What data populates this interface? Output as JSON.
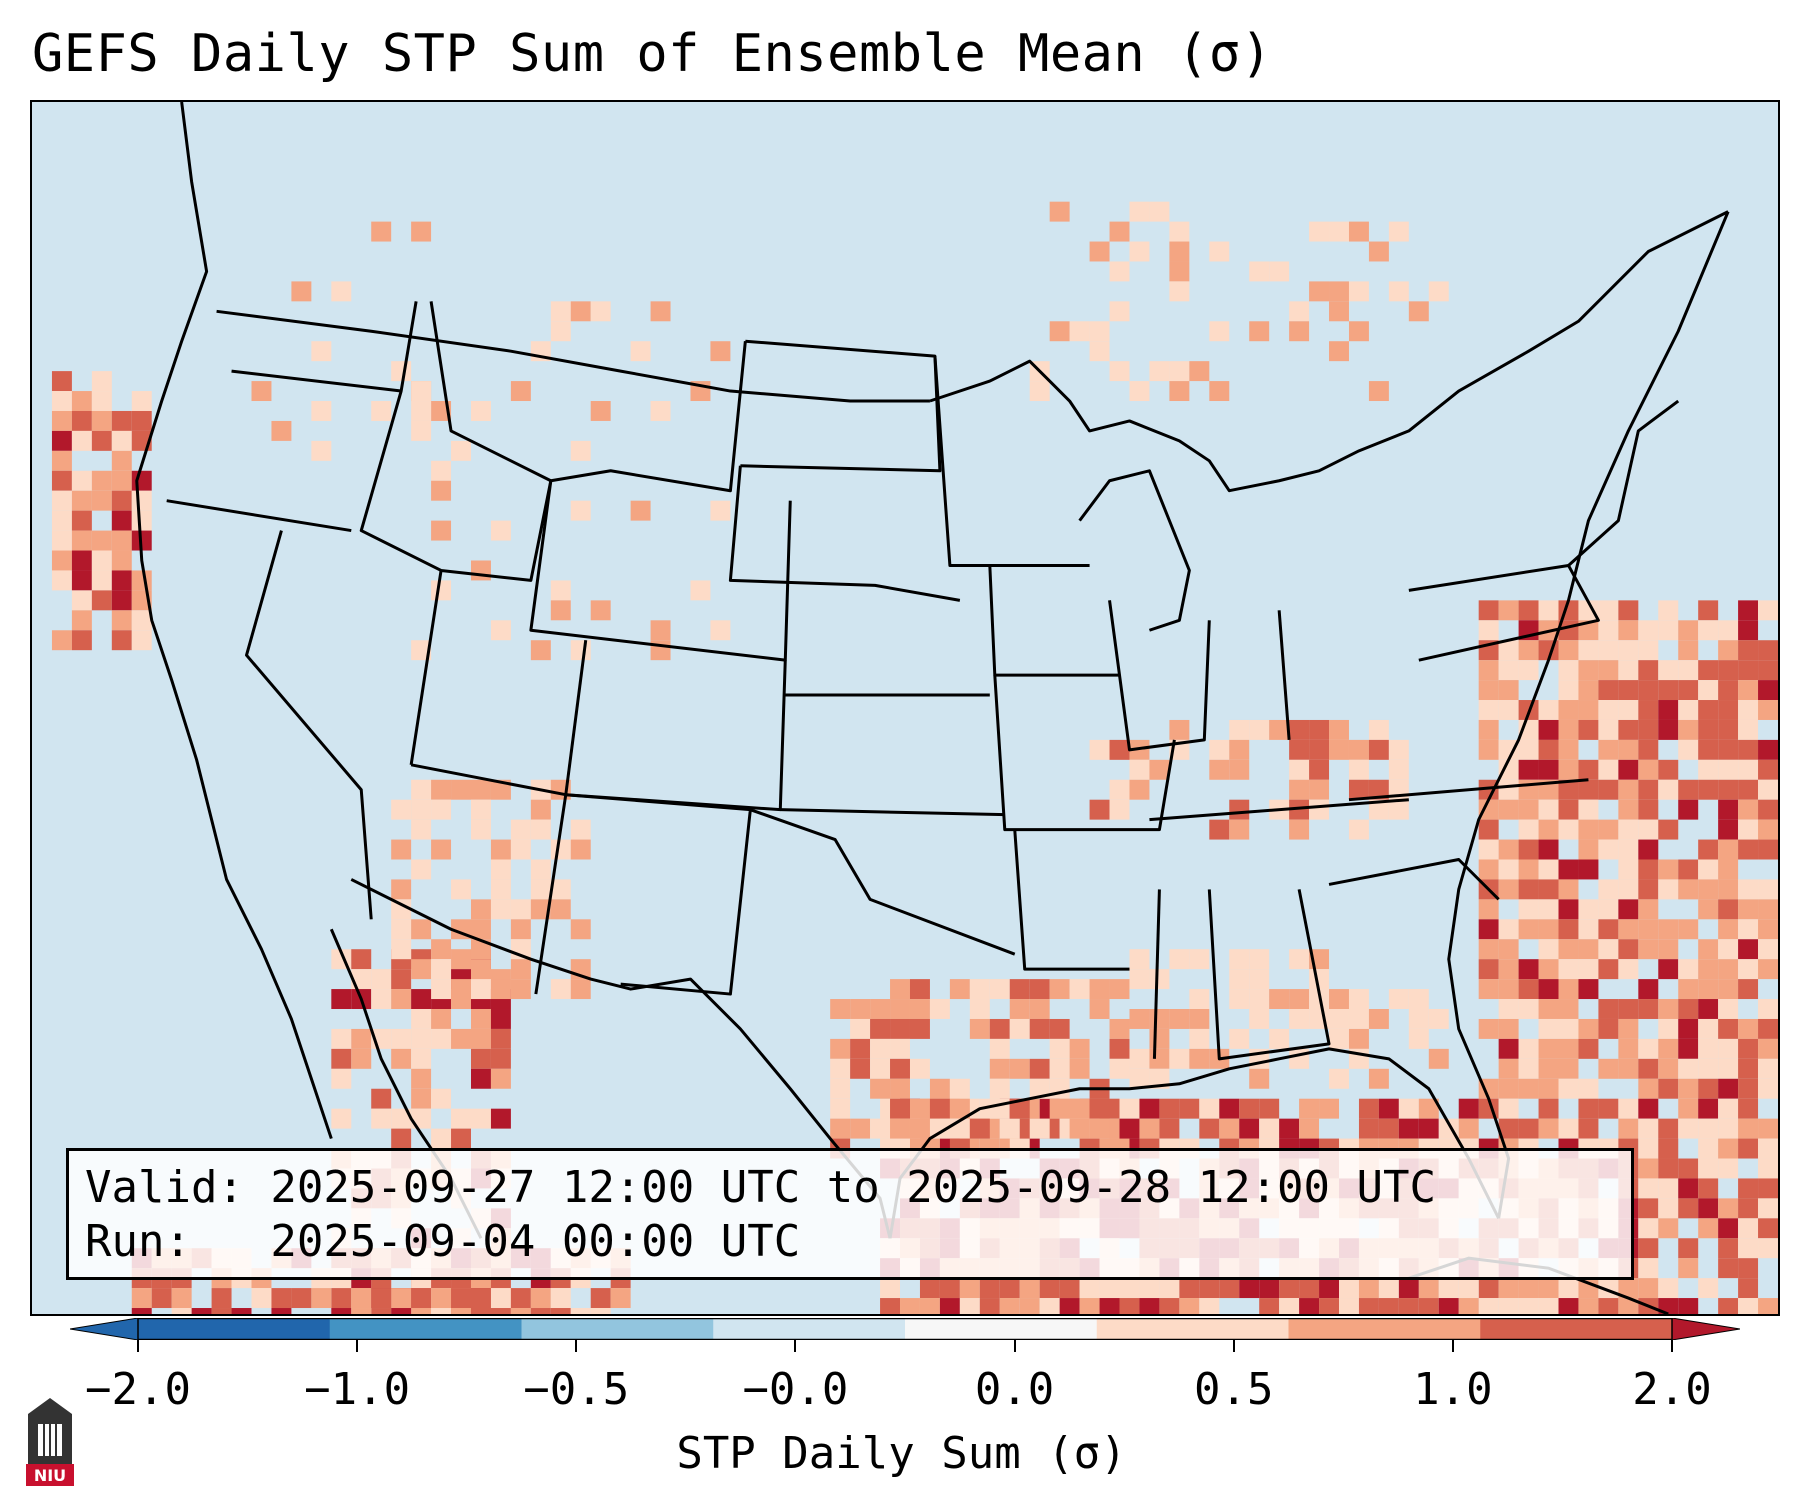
{
  "title": "GEFS Daily STP Sum of Ensemble Mean (σ)",
  "info": {
    "valid_line": "Valid: 2025-09-27 12:00 UTC to 2025-09-28 12:00 UTC",
    "run_line": "Run:   2025-09-04 00:00 UTC"
  },
  "colorbar": {
    "label": "STP Daily Sum (σ)",
    "ticks": [
      "−2.0",
      "−1.0",
      "−0.5",
      "−0.0",
      "0.0",
      "0.5",
      "1.0",
      "2.0"
    ],
    "colors": [
      "#2166ac",
      "#4393c3",
      "#92c5de",
      "#d1e5f0",
      "#f7f7f7",
      "#fddbc7",
      "#f4a582",
      "#d6604d",
      "#b2182b"
    ]
  },
  "map": {
    "region": "Continental United States",
    "background_color": "#d1e5f0",
    "border_color": "#000000"
  },
  "logo": {
    "text": "NIU",
    "color": "#c8102e"
  }
}
